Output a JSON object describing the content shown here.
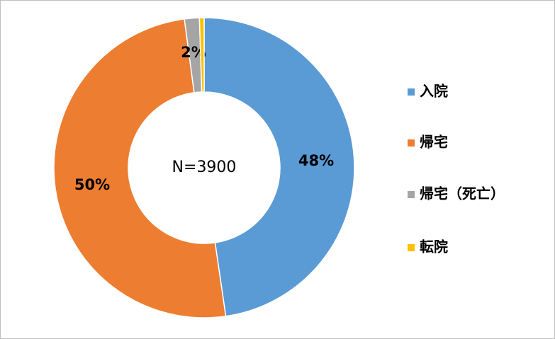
{
  "chart_data": {
    "type": "donut",
    "annotations": [
      "N=3900"
    ],
    "categories": [
      "入院",
      "帰宅",
      "帰宅（死亡）",
      "転院"
    ],
    "values": [
      47.7,
      50.2,
      1.6,
      0.5
    ],
    "value_labels": [
      "48%",
      "50%",
      "2%",
      null
    ],
    "colors": [
      "#5b9bd5",
      "#ed7d31",
      "#a5a5a5",
      "#ffc000"
    ],
    "legend": "right"
  }
}
